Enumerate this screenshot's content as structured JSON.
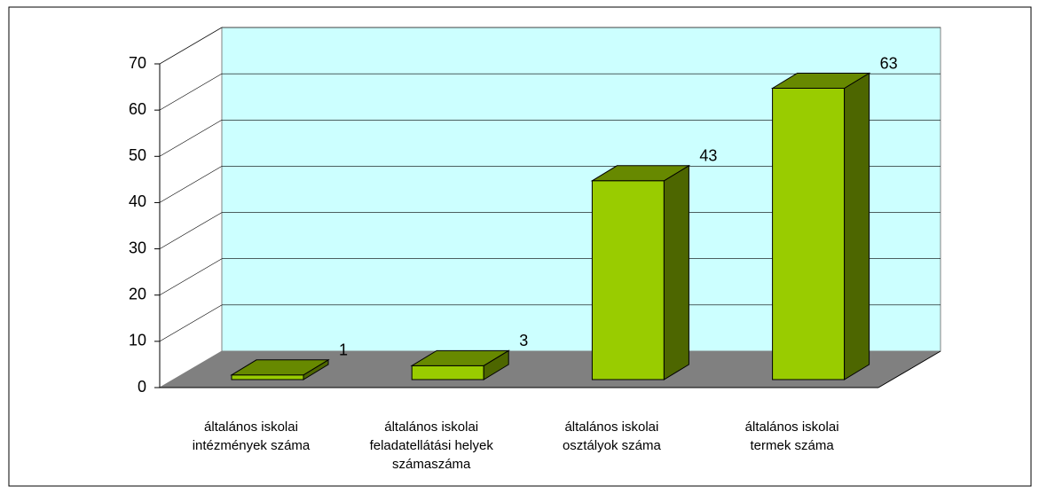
{
  "chart_data": {
    "type": "bar3d",
    "categories": [
      "általános iskolai\nintézmények száma",
      "általános iskolai\nfeladatellátási helyek\nszámaszáma",
      "általános iskolai\nosztályok száma",
      "általános iskolai\ntermek száma"
    ],
    "values": [
      1,
      3,
      43,
      63
    ],
    "color": "#99cc00",
    "ylim": [
      0,
      70
    ],
    "yticks": [
      0,
      10,
      20,
      30,
      40,
      50,
      60,
      70
    ],
    "grid": true
  }
}
